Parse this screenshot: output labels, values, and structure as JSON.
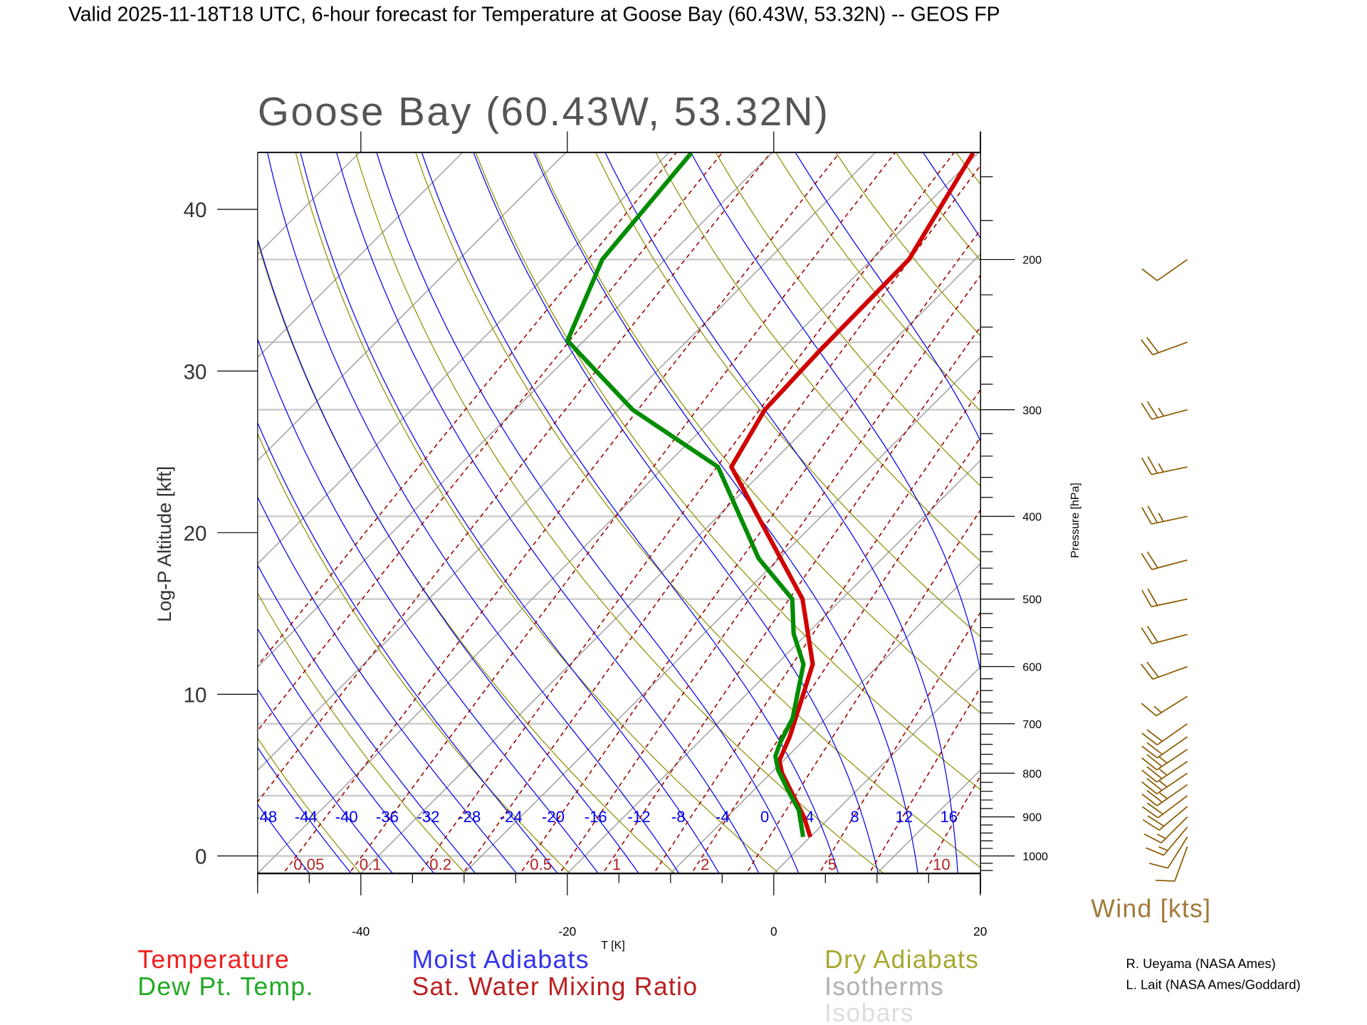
{
  "header": {
    "title": "Valid 2025-11-18T18 UTC, 6-hour forecast for Temperature at Goose Bay (60.43W, 53.32N) -- GEOS FP"
  },
  "chart_data": {
    "type": "skew-t",
    "title": "Goose Bay (60.43W, 53.32N)",
    "ylabel_left": "Log-P Altitude [kft]",
    "ylabel_right": "Pressure [hPa]",
    "xlabel": "T [K]",
    "x_ticks": [
      "-40",
      "-20",
      "0",
      "20"
    ],
    "x_tick_values": [
      -40,
      -20,
      0,
      20
    ],
    "xlim_degC_at_bottom": [
      -50,
      20
    ],
    "altitude_ticks": [
      "0",
      "10",
      "20",
      "30",
      "40"
    ],
    "altitude_tick_values": [
      0,
      10,
      20,
      30,
      40
    ],
    "pressure_ticks": [
      "200",
      "300",
      "400",
      "500",
      "600",
      "700",
      "800",
      "900",
      "1000"
    ],
    "pressure_tick_values": [
      200,
      300,
      400,
      500,
      600,
      700,
      800,
      900,
      1000
    ],
    "plim_hPa": [
      1048,
      150
    ],
    "isobars_hPa": [
      200,
      250,
      300,
      400,
      500,
      700,
      850,
      1000
    ],
    "isotherm_step_degC": 10,
    "dry_adiabat_theta_K": [
      200,
      210,
      220,
      230,
      240,
      250,
      260,
      270,
      280,
      290,
      300,
      310,
      320,
      330,
      340,
      350,
      360,
      370,
      380,
      390,
      400,
      410,
      420,
      430,
      440,
      450,
      460,
      470,
      480
    ],
    "moist_adiabat_labels": [
      "-48",
      "-44",
      "-40",
      "-36",
      "-32",
      "-28",
      "-24",
      "-20",
      "-16",
      "-12",
      "-8",
      "-4",
      "0",
      "4",
      "8",
      "12",
      "16"
    ],
    "moist_adiabat_values_degC": [
      -48,
      -44,
      -40,
      -36,
      -32,
      -28,
      -24,
      -20,
      -16,
      -12,
      -8,
      -4,
      0,
      4,
      8,
      12,
      16,
      20,
      24,
      28,
      32
    ],
    "mixing_ratio_labels": [
      "0.05",
      "0.1",
      "0.2",
      "0.5",
      "1",
      "2",
      "5",
      "10"
    ],
    "mixing_ratio_values_gkg": [
      0.005,
      0.01,
      0.02,
      0.05,
      0.1,
      0.2,
      0.3,
      0.5,
      0.7,
      1,
      1.5,
      2,
      3,
      5,
      7,
      10,
      15,
      20,
      30
    ],
    "series": [
      {
        "name": "Temperature",
        "color": "#d00000",
        "points": [
          {
            "p": 950,
            "t": 0.0
          },
          {
            "p": 901,
            "t": -2.5
          },
          {
            "p": 800,
            "t": -8.9
          },
          {
            "p": 773,
            "t": -10.4
          },
          {
            "p": 725,
            "t": -11.7
          },
          {
            "p": 596,
            "t": -16.5
          },
          {
            "p": 500,
            "t": -23.8
          },
          {
            "p": 350,
            "t": -43.5
          },
          {
            "p": 300,
            "t": -45.8
          },
          {
            "p": 256,
            "t": -46.2
          },
          {
            "p": 200,
            "t": -46.4
          },
          {
            "p": 150,
            "t": -50.5
          }
        ]
      },
      {
        "name": "Dew Pt. Temp.",
        "color": "#008c00",
        "points": [
          {
            "p": 950,
            "t": -0.7
          },
          {
            "p": 884,
            "t": -3.7
          },
          {
            "p": 845,
            "t": -6.2
          },
          {
            "p": 793,
            "t": -9.6
          },
          {
            "p": 764,
            "t": -11.2
          },
          {
            "p": 735,
            "t": -12.1
          },
          {
            "p": 690,
            "t": -13.2
          },
          {
            "p": 596,
            "t": -17.4
          },
          {
            "p": 549,
            "t": -21.3
          },
          {
            "p": 500,
            "t": -24.8
          },
          {
            "p": 448,
            "t": -32.0
          },
          {
            "p": 350,
            "t": -44.8
          },
          {
            "p": 300,
            "t": -58.6
          },
          {
            "p": 249,
            "t": -71.6
          },
          {
            "p": 200,
            "t": -76.1
          },
          {
            "p": 150,
            "t": -77.8
          }
        ]
      }
    ],
    "wind": {
      "label": "Wind [kts]",
      "color": "#8b5a00",
      "barbs": [
        {
          "p": 200,
          "dir": 235,
          "spd": 10
        },
        {
          "p": 250,
          "dir": 250,
          "spd": 20
        },
        {
          "p": 300,
          "dir": 255,
          "spd": 25
        },
        {
          "p": 350,
          "dir": 258,
          "spd": 25
        },
        {
          "p": 400,
          "dir": 258,
          "spd": 25
        },
        {
          "p": 450,
          "dir": 255,
          "spd": 20
        },
        {
          "p": 500,
          "dir": 258,
          "spd": 20
        },
        {
          "p": 550,
          "dir": 255,
          "spd": 20
        },
        {
          "p": 600,
          "dir": 250,
          "spd": 20
        },
        {
          "p": 650,
          "dir": 238,
          "spd": 15
        },
        {
          "p": 700,
          "dir": 235,
          "spd": 20
        },
        {
          "p": 725,
          "dir": 235,
          "spd": 20
        },
        {
          "p": 750,
          "dir": 236,
          "spd": 25
        },
        {
          "p": 775,
          "dir": 236,
          "spd": 25
        },
        {
          "p": 800,
          "dir": 236,
          "spd": 25
        },
        {
          "p": 825,
          "dir": 235,
          "spd": 25
        },
        {
          "p": 850,
          "dir": 233,
          "spd": 20
        },
        {
          "p": 875,
          "dir": 230,
          "spd": 20
        },
        {
          "p": 900,
          "dir": 225,
          "spd": 15
        },
        {
          "p": 925,
          "dir": 220,
          "spd": 15
        },
        {
          "p": 950,
          "dir": 212,
          "spd": 10
        },
        {
          "p": 975,
          "dir": 200,
          "spd": 10
        }
      ]
    }
  },
  "legend": {
    "temperature": "Temperature",
    "dewpoint": "Dew Pt. Temp.",
    "moist_adiabats": "Moist Adiabats",
    "mixing_ratio": "Sat. Water Mixing Ratio",
    "dry_adiabats": "Dry Adiabats",
    "isotherms": "Isotherms",
    "isobars": "Isobars"
  },
  "credits": [
    "R. Ueyama (NASA Ames)",
    "L. Lait (NASA Ames/Goddard)"
  ],
  "colors": {
    "temperature": "#d00000",
    "dewpoint": "#008c00",
    "moist": "#0000ee",
    "mixing": "#a00000",
    "dry": "#8f8f00",
    "isotherm": "#a0a0a0",
    "isobar": "#cccccc",
    "wind": "#8b5a00"
  }
}
